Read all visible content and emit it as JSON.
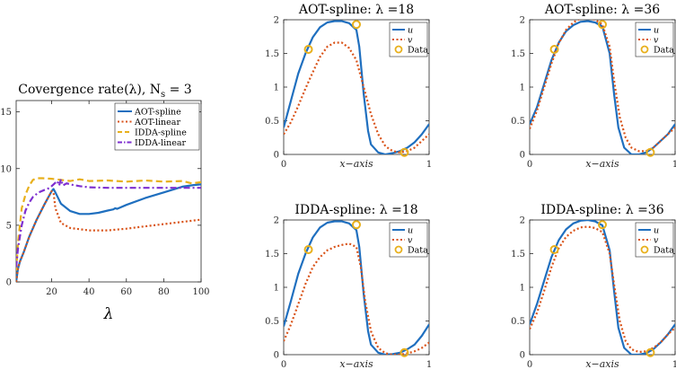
{
  "colors": {
    "blue": "#1f6fbf",
    "orange": "#d95319",
    "yellow": "#e8b01c",
    "purple": "#7e2fd0"
  },
  "chart_data": [
    {
      "id": "conv",
      "type": "line",
      "title": "Covergence rate(λ), N",
      "title_sub": "s",
      "title_tail": " = 3",
      "xlabel": "λ",
      "xlim": [
        1,
        100
      ],
      "ylim": [
        0,
        16
      ],
      "xticks": [
        20,
        40,
        60,
        80,
        100
      ],
      "yticks": [
        0,
        5,
        10,
        15
      ],
      "legend_position": "top-right",
      "series": [
        {
          "name": "AOT-spline",
          "style": "solid",
          "color": "#1f6fbf",
          "x": [
            1,
            2,
            3,
            5,
            8,
            12,
            16,
            20,
            21,
            22,
            25,
            30,
            35,
            40,
            45,
            50,
            53,
            54,
            55,
            60,
            70,
            80,
            90,
            96,
            100
          ],
          "y": [
            0,
            1.2,
            1.8,
            2.6,
            4.0,
            5.5,
            6.8,
            8.0,
            8.2,
            7.9,
            6.9,
            6.25,
            6.0,
            6.0,
            6.1,
            6.3,
            6.4,
            6.5,
            6.45,
            6.8,
            7.4,
            7.9,
            8.4,
            8.55,
            8.6
          ]
        },
        {
          "name": "AOT-linear",
          "style": "dotted",
          "color": "#d95319",
          "x": [
            1,
            2,
            3,
            5,
            8,
            12,
            16,
            20,
            21,
            22,
            25,
            30,
            40,
            50,
            60,
            70,
            80,
            90,
            100
          ],
          "y": [
            0,
            1.2,
            1.8,
            2.6,
            4.0,
            5.5,
            6.8,
            8.0,
            7.9,
            6.5,
            5.2,
            4.75,
            4.55,
            4.55,
            4.7,
            4.9,
            5.1,
            5.3,
            5.5
          ]
        },
        {
          "name": "IDDA-spline",
          "style": "dashed",
          "color": "#e8b01c",
          "x": [
            1,
            2,
            4,
            6,
            8,
            10,
            12,
            15,
            20,
            25,
            30,
            35,
            40,
            50,
            60,
            70,
            80,
            90,
            95,
            100
          ],
          "y": [
            1.0,
            3.5,
            6.5,
            7.7,
            8.5,
            9.0,
            9.15,
            9.15,
            9.1,
            9.0,
            8.9,
            9.05,
            8.9,
            8.95,
            8.85,
            8.95,
            8.85,
            8.9,
            8.7,
            8.8
          ]
        },
        {
          "name": "IDDA-linear",
          "style": "dashdot",
          "color": "#7e2fd0",
          "x": [
            1,
            2,
            4,
            6,
            8,
            10,
            13,
            16,
            19,
            21,
            23,
            24,
            25,
            26,
            28,
            30,
            35,
            40,
            50,
            60,
            70,
            80,
            90,
            100
          ],
          "y": [
            1.3,
            3.0,
            5.0,
            6.3,
            7.0,
            7.5,
            7.9,
            8.1,
            8.3,
            8.6,
            8.9,
            8.5,
            9.05,
            8.5,
            8.7,
            8.6,
            8.45,
            8.35,
            8.3,
            8.3,
            8.3,
            8.3,
            8.3,
            8.3
          ]
        }
      ]
    },
    {
      "id": "aot18",
      "type": "line",
      "title": "AOT-spline: λ =18",
      "xlabel": "x−axis",
      "xlim": [
        0,
        1
      ],
      "ylim": [
        0,
        2
      ],
      "xticks": [
        0,
        1
      ],
      "yticks": [
        0,
        0.5,
        1,
        1.5,
        2
      ],
      "series": [
        {
          "name": "u",
          "style": "solid",
          "color": "#1f6fbf",
          "x": [
            0,
            0.05,
            0.1,
            0.15,
            0.2,
            0.25,
            0.3,
            0.35,
            0.4,
            0.45,
            0.5,
            0.52,
            0.55,
            0.58,
            0.6,
            0.65,
            0.7,
            0.75,
            0.8,
            0.85,
            0.9,
            0.95,
            1
          ],
          "y": [
            0.4,
            0.8,
            1.2,
            1.5,
            1.74,
            1.89,
            1.96,
            1.98,
            1.98,
            1.95,
            1.85,
            1.6,
            0.9,
            0.35,
            0.15,
            0.03,
            0.0,
            0.02,
            0.05,
            0.1,
            0.18,
            0.3,
            0.45
          ]
        },
        {
          "name": "v",
          "style": "dotted",
          "color": "#d95319",
          "x": [
            0,
            0.05,
            0.1,
            0.15,
            0.2,
            0.25,
            0.3,
            0.35,
            0.4,
            0.45,
            0.5,
            0.55,
            0.6,
            0.65,
            0.7,
            0.75,
            0.8,
            0.85,
            0.9,
            0.95,
            1
          ],
          "y": [
            0.3,
            0.48,
            0.72,
            0.98,
            1.22,
            1.45,
            1.6,
            1.66,
            1.66,
            1.58,
            1.4,
            1.0,
            0.6,
            0.3,
            0.12,
            0.05,
            0.03,
            0.05,
            0.1,
            0.2,
            0.3
          ]
        },
        {
          "name": "Data",
          "style": "markers",
          "color": "#e8b01c",
          "x": [
            0.17,
            0.5,
            0.83
          ],
          "y": [
            1.56,
            1.93,
            0.03
          ]
        }
      ]
    },
    {
      "id": "aot36",
      "type": "line",
      "title": "AOT-spline: λ =36",
      "xlabel": "x−axis",
      "xlim": [
        0,
        1
      ],
      "ylim": [
        0,
        2
      ],
      "xticks": [
        0,
        1
      ],
      "yticks": [
        0,
        0.5,
        1,
        1.5,
        2
      ],
      "series": [
        {
          "name": "u",
          "style": "solid",
          "color": "#1f6fbf",
          "x": [
            0,
            0.05,
            0.1,
            0.15,
            0.2,
            0.25,
            0.3,
            0.35,
            0.4,
            0.45,
            0.5,
            0.55,
            0.58,
            0.61,
            0.65,
            0.7,
            0.75,
            0.8,
            0.85,
            0.9,
            0.95,
            1
          ],
          "y": [
            0.45,
            0.7,
            1.05,
            1.4,
            1.66,
            1.83,
            1.92,
            1.97,
            1.98,
            1.96,
            1.9,
            1.5,
            0.9,
            0.4,
            0.1,
            0.0,
            0.0,
            0.03,
            0.1,
            0.2,
            0.3,
            0.45
          ]
        },
        {
          "name": "v",
          "style": "dotted",
          "color": "#d95319",
          "x": [
            0,
            0.05,
            0.1,
            0.15,
            0.2,
            0.25,
            0.3,
            0.35,
            0.4,
            0.45,
            0.5,
            0.55,
            0.58,
            0.62,
            0.66,
            0.7,
            0.75,
            0.8,
            0.85,
            0.9,
            0.95,
            1
          ],
          "y": [
            0.38,
            0.65,
            1.0,
            1.35,
            1.65,
            1.85,
            1.96,
            2.02,
            2.04,
            2.0,
            1.93,
            1.6,
            1.1,
            0.55,
            0.25,
            0.1,
            0.05,
            0.05,
            0.1,
            0.2,
            0.3,
            0.4
          ]
        },
        {
          "name": "Data",
          "style": "markers",
          "color": "#e8b01c",
          "x": [
            0.17,
            0.5,
            0.83
          ],
          "y": [
            1.56,
            1.93,
            0.03
          ]
        }
      ]
    },
    {
      "id": "idda18",
      "type": "line",
      "title": "IDDA-spline: λ =18",
      "xlabel": "x−axis",
      "xlim": [
        0,
        1
      ],
      "ylim": [
        0,
        2
      ],
      "xticks": [
        0,
        1
      ],
      "yticks": [
        0,
        0.5,
        1,
        1.5,
        2
      ],
      "series": [
        {
          "name": "u",
          "style": "solid",
          "color": "#1f6fbf",
          "x": [
            0,
            0.05,
            0.1,
            0.15,
            0.2,
            0.25,
            0.3,
            0.35,
            0.4,
            0.45,
            0.5,
            0.52,
            0.55,
            0.58,
            0.6,
            0.65,
            0.7,
            0.75,
            0.8,
            0.85,
            0.9,
            0.95,
            1
          ],
          "y": [
            0.42,
            0.8,
            1.2,
            1.5,
            1.74,
            1.89,
            1.96,
            1.98,
            1.98,
            1.95,
            1.85,
            1.6,
            0.9,
            0.35,
            0.15,
            0.03,
            0.0,
            0.01,
            0.03,
            0.08,
            0.15,
            0.28,
            0.45
          ]
        },
        {
          "name": "v",
          "style": "dotted",
          "color": "#d95319",
          "x": [
            0,
            0.05,
            0.1,
            0.15,
            0.2,
            0.25,
            0.3,
            0.35,
            0.4,
            0.45,
            0.5,
            0.53,
            0.56,
            0.6,
            0.65,
            0.7,
            0.75,
            0.8,
            0.85,
            0.9,
            0.95,
            1
          ],
          "y": [
            0.2,
            0.45,
            0.75,
            1.05,
            1.3,
            1.45,
            1.55,
            1.6,
            1.63,
            1.65,
            1.6,
            1.3,
            0.8,
            0.35,
            0.1,
            0.02,
            0.0,
            0.0,
            0.02,
            0.05,
            0.1,
            0.18
          ]
        },
        {
          "name": "Data",
          "style": "markers",
          "color": "#e8b01c",
          "x": [
            0.17,
            0.5,
            0.83
          ],
          "y": [
            1.56,
            1.93,
            0.03
          ]
        }
      ]
    },
    {
      "id": "idda36",
      "type": "line",
      "title": "IDDA-spline: λ =36",
      "xlabel": "x−axis",
      "xlim": [
        0,
        1
      ],
      "ylim": [
        0,
        2
      ],
      "xticks": [
        0,
        1
      ],
      "yticks": [
        0,
        0.5,
        1,
        1.5,
        2
      ],
      "series": [
        {
          "name": "u",
          "style": "solid",
          "color": "#1f6fbf",
          "x": [
            0,
            0.05,
            0.1,
            0.15,
            0.2,
            0.25,
            0.3,
            0.35,
            0.4,
            0.45,
            0.5,
            0.55,
            0.58,
            0.61,
            0.65,
            0.7,
            0.75,
            0.8,
            0.85,
            0.9,
            0.95,
            1
          ],
          "y": [
            0.45,
            0.75,
            1.1,
            1.45,
            1.7,
            1.86,
            1.95,
            1.99,
            2.0,
            1.98,
            1.92,
            1.55,
            0.95,
            0.4,
            0.1,
            0.0,
            0.0,
            0.02,
            0.08,
            0.18,
            0.3,
            0.45
          ]
        },
        {
          "name": "v",
          "style": "dotted",
          "color": "#d95319",
          "x": [
            0,
            0.05,
            0.1,
            0.15,
            0.2,
            0.25,
            0.3,
            0.35,
            0.4,
            0.45,
            0.5,
            0.55,
            0.58,
            0.62,
            0.66,
            0.7,
            0.75,
            0.8,
            0.85,
            0.9,
            0.95,
            1
          ],
          "y": [
            0.38,
            0.62,
            0.95,
            1.3,
            1.58,
            1.75,
            1.84,
            1.89,
            1.9,
            1.88,
            1.82,
            1.5,
            1.05,
            0.5,
            0.2,
            0.08,
            0.04,
            0.05,
            0.1,
            0.18,
            0.3,
            0.4
          ]
        },
        {
          "name": "Data",
          "style": "markers",
          "color": "#e8b01c",
          "x": [
            0.17,
            0.5,
            0.83
          ],
          "y": [
            1.56,
            1.93,
            0.03
          ]
        }
      ]
    }
  ]
}
